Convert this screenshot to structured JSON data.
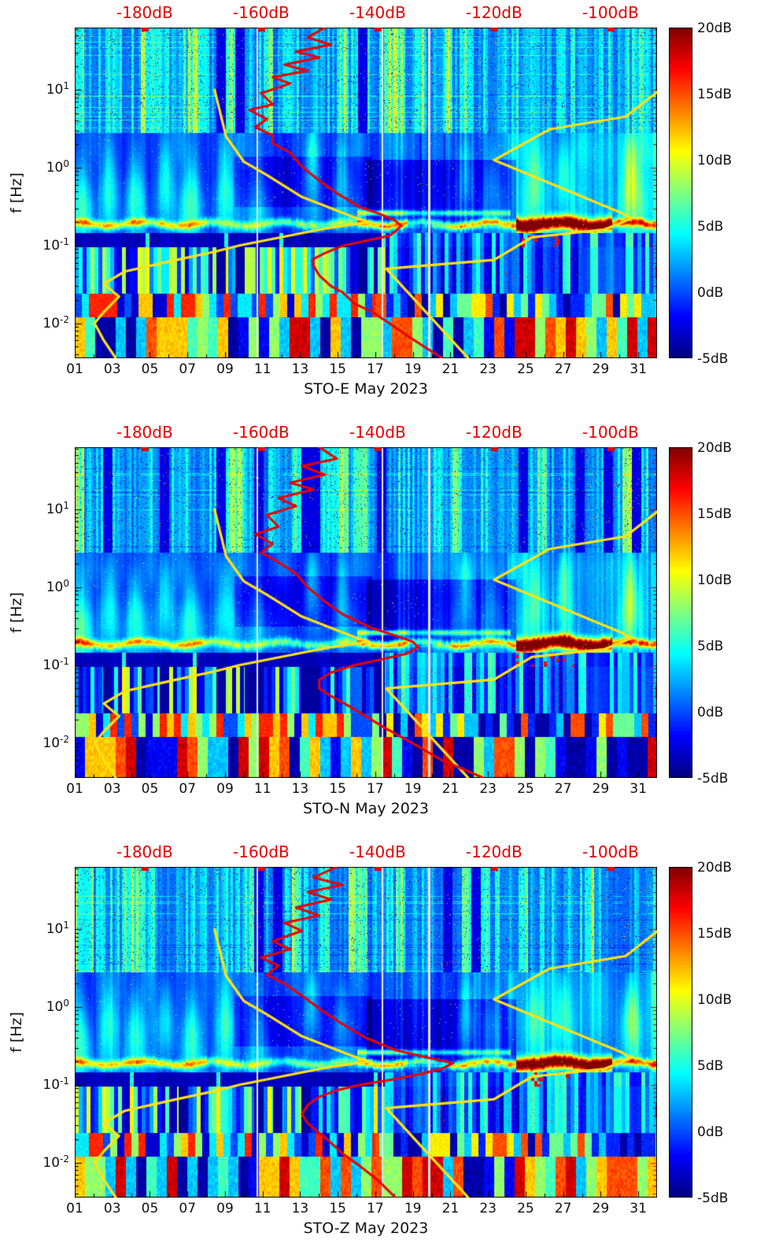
{
  "colors": {
    "top_axis_red": "#e60000",
    "curve_red": "#eb0000",
    "curve_yellow": "#ffe115",
    "axis_black": "#000000",
    "background": "#ffffff",
    "data_gap_gray": "#e6e6e8"
  },
  "shared": {
    "ylabel": "f [Hz]",
    "top_ticks": [
      "-180dB",
      "-160dB",
      "-140dB",
      "-120dB",
      "-100dB"
    ],
    "top_ticks_db": [
      -180,
      -160,
      -140,
      -120,
      -100
    ],
    "top_axis_range_db": [
      -192,
      -92
    ],
    "x_ticks": [
      "01",
      "03",
      "05",
      "07",
      "09",
      "11",
      "13",
      "15",
      "17",
      "19",
      "21",
      "23",
      "25",
      "27",
      "29",
      "31"
    ],
    "x_tick_days": [
      1,
      3,
      5,
      7,
      9,
      11,
      13,
      15,
      17,
      19,
      21,
      23,
      25,
      27,
      29,
      31
    ],
    "x_range_days": [
      1,
      32
    ],
    "y_ticks": [
      {
        "mantissa": "10",
        "exp": "1",
        "hz": 10
      },
      {
        "mantissa": "10",
        "exp": "0",
        "hz": 1
      },
      {
        "mantissa": "10",
        "exp": "-1",
        "hz": 0.1
      },
      {
        "mantissa": "10",
        "exp": "-2",
        "hz": 0.01
      }
    ],
    "y_range_hz": [
      0.00355,
      63
    ],
    "y_scale": "log",
    "colorbar_ticks": [
      "20dB",
      "15dB",
      "10dB",
      "5dB",
      "0dB",
      "-5dB"
    ],
    "colorbar_ticks_db": [
      20,
      15,
      10,
      5,
      0,
      -5
    ],
    "colorbar_range_db": [
      -5,
      20
    ],
    "colormap": "jet"
  },
  "chart_data": {
    "type": "heatmap",
    "subtype": "spectrogram-with-psd-overlays",
    "month": "May 2023",
    "station": "STO",
    "noise_models": {
      "low_noise_model_yellow_hz_db": [
        [
          10,
          -168
        ],
        [
          2.5,
          -166
        ],
        [
          1.2,
          -163
        ],
        [
          0.8,
          -159
        ],
        [
          0.42,
          -153
        ],
        [
          0.23,
          -144
        ],
        [
          0.2,
          -141.4
        ],
        [
          0.165,
          -149
        ],
        [
          0.1,
          -163.7
        ],
        [
          0.083,
          -168
        ],
        [
          0.064,
          -175
        ],
        [
          0.046,
          -183.5
        ],
        [
          0.032,
          -187
        ],
        [
          0.022,
          -184.4
        ],
        [
          0.014,
          -187
        ],
        [
          0.01,
          -188.6
        ],
        [
          0.006,
          -187
        ],
        [
          0.0036,
          -185
        ]
      ],
      "high_noise_model_yellow_hz_db": [
        [
          60,
          -88
        ],
        [
          10,
          -91.5
        ],
        [
          4.5,
          -97.4
        ],
        [
          3.1,
          -110.5
        ],
        [
          1.25,
          -120
        ],
        [
          0.26,
          -98
        ],
        [
          0.22,
          -96.5
        ],
        [
          0.16,
          -101
        ],
        [
          0.127,
          -113.5
        ],
        [
          0.065,
          -120
        ],
        [
          0.05,
          -138.5
        ],
        [
          0.0036,
          -124.5
        ]
      ]
    },
    "panels": [
      {
        "component": "E",
        "title": "STO-E May 2023",
        "data_gaps_days": [
          10.7,
          17.35,
          19.85
        ],
        "strong_band": {
          "freq_hz": 0.19,
          "days": [
            24.5,
            29.6
          ],
          "level_db": 20
        },
        "median_psd_red_hz_db": [
          [
            63,
            -149
          ],
          [
            47,
            -152
          ],
          [
            38,
            -148
          ],
          [
            31,
            -154
          ],
          [
            26,
            -150
          ],
          [
            21,
            -156
          ],
          [
            17.5,
            -152
          ],
          [
            14.5,
            -158
          ],
          [
            12,
            -155
          ],
          [
            9,
            -160
          ],
          [
            6.5,
            -158
          ],
          [
            5.5,
            -162
          ],
          [
            4.2,
            -159
          ],
          [
            3.3,
            -161
          ],
          [
            2.6,
            -158
          ],
          [
            2.05,
            -158
          ],
          [
            1.55,
            -155
          ],
          [
            1.03,
            -153
          ],
          [
            0.68,
            -150
          ],
          [
            0.47,
            -147
          ],
          [
            0.31,
            -143
          ],
          [
            0.26,
            -140
          ],
          [
            0.21,
            -137
          ],
          [
            0.178,
            -136
          ],
          [
            0.15,
            -137
          ],
          [
            0.133,
            -138
          ],
          [
            0.115,
            -142
          ],
          [
            0.099,
            -146
          ],
          [
            0.08,
            -149
          ],
          [
            0.067,
            -151
          ],
          [
            0.055,
            -151
          ],
          [
            0.041,
            -150
          ],
          [
            0.03,
            -148
          ],
          [
            0.025,
            -146
          ],
          [
            0.018,
            -144
          ],
          [
            0.014,
            -141
          ],
          [
            0.01,
            -138
          ],
          [
            0.007,
            -135
          ],
          [
            0.005,
            -132
          ],
          [
            0.0036,
            -129
          ]
        ]
      },
      {
        "component": "N",
        "title": "STO-N May 2023",
        "data_gaps_days": [
          10.7,
          17.35,
          19.85
        ],
        "strong_band": {
          "freq_hz": 0.19,
          "days": [
            24.5,
            29.6
          ],
          "level_db": 20
        },
        "median_psd_red_hz_db": [
          [
            63,
            -150
          ],
          [
            45,
            -147
          ],
          [
            36,
            -153
          ],
          [
            28,
            -149
          ],
          [
            22,
            -155
          ],
          [
            18,
            -151
          ],
          [
            14,
            -157
          ],
          [
            11,
            -154
          ],
          [
            8.5,
            -159
          ],
          [
            6,
            -157
          ],
          [
            4.8,
            -161
          ],
          [
            3.6,
            -158
          ],
          [
            2.8,
            -160
          ],
          [
            2.1,
            -157
          ],
          [
            1.5,
            -154
          ],
          [
            1.0,
            -152
          ],
          [
            0.65,
            -149
          ],
          [
            0.45,
            -146
          ],
          [
            0.3,
            -141
          ],
          [
            0.24,
            -137
          ],
          [
            0.2,
            -134
          ],
          [
            0.17,
            -133
          ],
          [
            0.14,
            -135
          ],
          [
            0.12,
            -139
          ],
          [
            0.1,
            -144
          ],
          [
            0.08,
            -148
          ],
          [
            0.065,
            -150
          ],
          [
            0.05,
            -150
          ],
          [
            0.04,
            -148
          ],
          [
            0.03,
            -145
          ],
          [
            0.022,
            -142
          ],
          [
            0.016,
            -139
          ],
          [
            0.012,
            -136
          ],
          [
            0.009,
            -133
          ],
          [
            0.006,
            -129
          ],
          [
            0.0045,
            -125
          ],
          [
            0.0036,
            -122
          ]
        ]
      },
      {
        "component": "Z",
        "title": "STO-Z May 2023",
        "data_gaps_days": [
          10.7,
          17.35,
          19.85
        ],
        "strong_band": {
          "freq_hz": 0.19,
          "days": [
            24.5,
            29.6
          ],
          "level_db": 20
        },
        "median_psd_red_hz_db": [
          [
            63,
            -147
          ],
          [
            46,
            -151
          ],
          [
            37,
            -146
          ],
          [
            30,
            -152
          ],
          [
            24,
            -148
          ],
          [
            19,
            -154
          ],
          [
            15,
            -150
          ],
          [
            12,
            -156
          ],
          [
            9.5,
            -153
          ],
          [
            7,
            -158
          ],
          [
            5.5,
            -155
          ],
          [
            4.3,
            -160
          ],
          [
            3.4,
            -157
          ],
          [
            2.6,
            -159
          ],
          [
            2.0,
            -156
          ],
          [
            1.4,
            -153
          ],
          [
            0.95,
            -150
          ],
          [
            0.6,
            -146
          ],
          [
            0.4,
            -142
          ],
          [
            0.28,
            -137
          ],
          [
            0.22,
            -131
          ],
          [
            0.19,
            -127
          ],
          [
            0.16,
            -129
          ],
          [
            0.135,
            -133
          ],
          [
            0.115,
            -138
          ],
          [
            0.1,
            -143
          ],
          [
            0.085,
            -147
          ],
          [
            0.07,
            -150
          ],
          [
            0.055,
            -152
          ],
          [
            0.042,
            -153
          ],
          [
            0.032,
            -152
          ],
          [
            0.024,
            -150
          ],
          [
            0.018,
            -148
          ],
          [
            0.013,
            -146
          ],
          [
            0.009,
            -143
          ],
          [
            0.006,
            -140
          ],
          [
            0.0036,
            -137
          ]
        ]
      }
    ]
  }
}
